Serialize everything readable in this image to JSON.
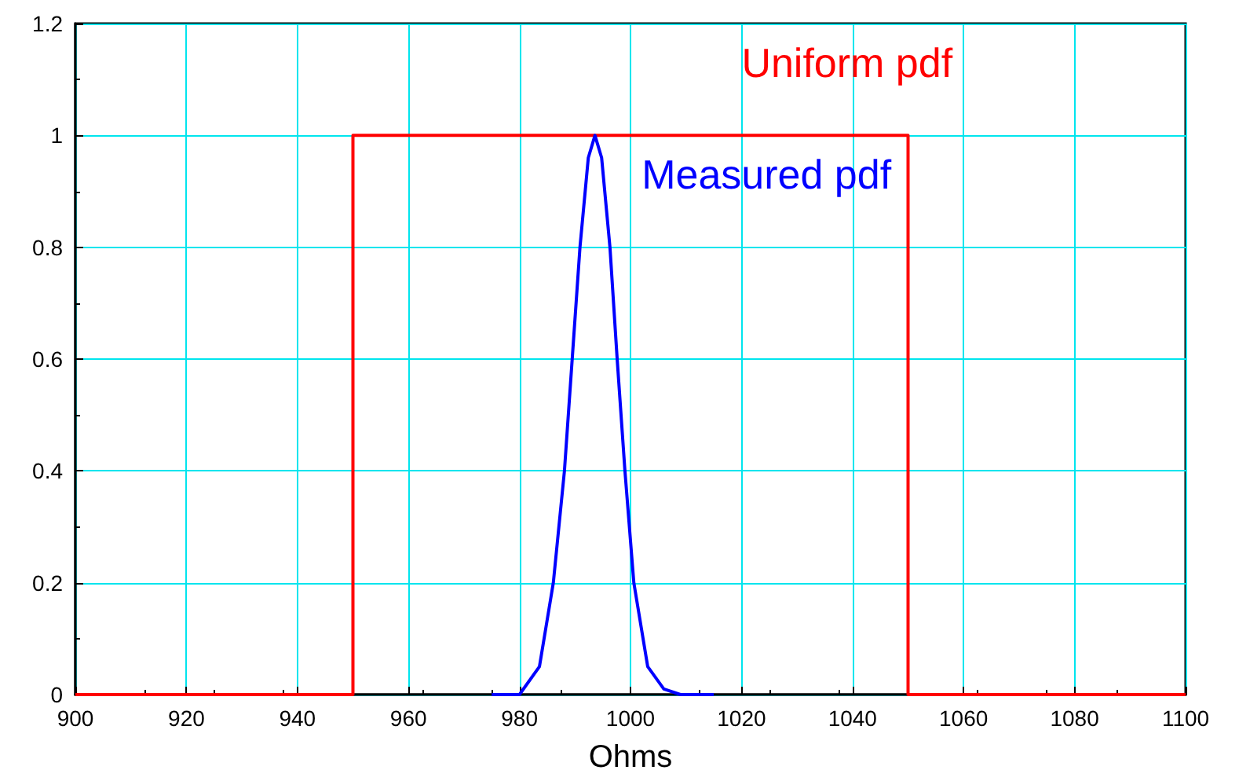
{
  "chart_data": {
    "type": "line",
    "xlabel": "Ohms",
    "xlim": [
      900,
      1100
    ],
    "xticks": [
      900,
      920,
      940,
      960,
      980,
      1000,
      1020,
      1040,
      1060,
      1080,
      1100
    ],
    "ylim": [
      0,
      1.2
    ],
    "yticks": [
      0,
      0.2,
      0.4,
      0.6,
      0.8,
      1,
      1.2
    ],
    "grid": true,
    "legend": false,
    "marker": "none",
    "line_style": "solid",
    "series": [
      {
        "name": "Uniform pdf",
        "color": "#ff0000",
        "x": [
          900,
          950,
          950,
          1050,
          1050,
          1100
        ],
        "values": [
          0,
          0,
          1,
          1,
          0,
          0
        ]
      },
      {
        "name": "Measured pdf",
        "color": "#0000ff",
        "x": [
          975,
          980,
          983.6,
          986.1,
          988.1,
          989.5,
          990.9,
          992.4,
          993.6,
          994.8,
          996.3,
          997.6,
          999,
          1000.6,
          1003.1,
          1006,
          1009,
          1015
        ],
        "values": [
          0,
          0,
          0.05,
          0.2,
          0.4,
          0.6,
          0.8,
          0.96,
          1,
          0.96,
          0.8,
          0.6,
          0.4,
          0.2,
          0.05,
          0.01,
          0,
          0
        ]
      }
    ]
  }
}
